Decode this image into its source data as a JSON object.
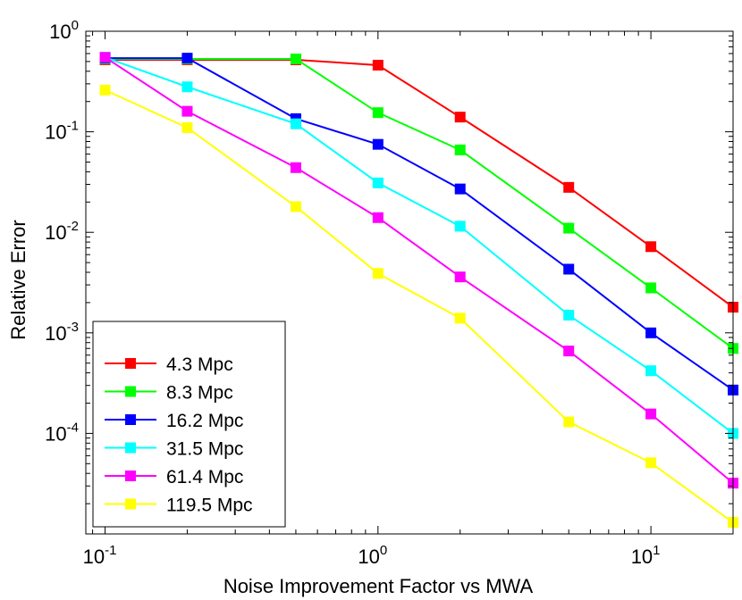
{
  "chart_data": {
    "type": "line",
    "title": "",
    "xlabel": "Noise Improvement Factor vs MWA",
    "ylabel": "Relative Error",
    "xscale": "log",
    "yscale": "log",
    "xlim": [
      0.085,
      20
    ],
    "ylim": [
      1e-05,
      1
    ],
    "legend_position": "bottom-left",
    "x": [
      0.1,
      0.2,
      0.5,
      1,
      2,
      5,
      10,
      20
    ],
    "x_ticks": [
      {
        "value": 0.1,
        "base": "10",
        "exp": "-1"
      },
      {
        "value": 1,
        "base": "10",
        "exp": "0"
      },
      {
        "value": 10,
        "base": "10",
        "exp": "1"
      }
    ],
    "y_ticks": [
      {
        "value": 1,
        "base": "10",
        "exp": "0"
      },
      {
        "value": 0.1,
        "base": "10",
        "exp": "-1"
      },
      {
        "value": 0.01,
        "base": "10",
        "exp": "-2"
      },
      {
        "value": 0.001,
        "base": "10",
        "exp": "-3"
      },
      {
        "value": 0.0001,
        "base": "10",
        "exp": "-4"
      }
    ],
    "series": [
      {
        "name": "4.3 Mpc",
        "color": "#ff0000",
        "values": [
          0.52,
          0.52,
          0.52,
          0.46,
          0.14,
          0.028,
          0.0072,
          0.0018
        ]
      },
      {
        "name": "8.3 Mpc",
        "color": "#00ff00",
        "values": [
          0.53,
          0.53,
          0.53,
          0.155,
          0.066,
          0.011,
          0.0028,
          0.0007
        ]
      },
      {
        "name": "16.2 Mpc",
        "color": "#0000ff",
        "values": [
          0.54,
          0.54,
          0.135,
          0.075,
          0.027,
          0.0043,
          0.001,
          0.00027
        ]
      },
      {
        "name": "31.5 Mpc",
        "color": "#00ffff",
        "values": [
          0.55,
          0.28,
          0.12,
          0.031,
          0.0115,
          0.0015,
          0.00042,
          0.0001
        ]
      },
      {
        "name": "61.4 Mpc",
        "color": "#ff00ff",
        "values": [
          0.55,
          0.16,
          0.044,
          0.014,
          0.0036,
          0.00066,
          0.000156,
          3.2e-05
        ]
      },
      {
        "name": "119.5 Mpc",
        "color": "#ffff00",
        "values": [
          0.26,
          0.11,
          0.018,
          0.0039,
          0.0014,
          0.00013,
          5.1e-05,
          1.3e-05
        ]
      }
    ]
  }
}
